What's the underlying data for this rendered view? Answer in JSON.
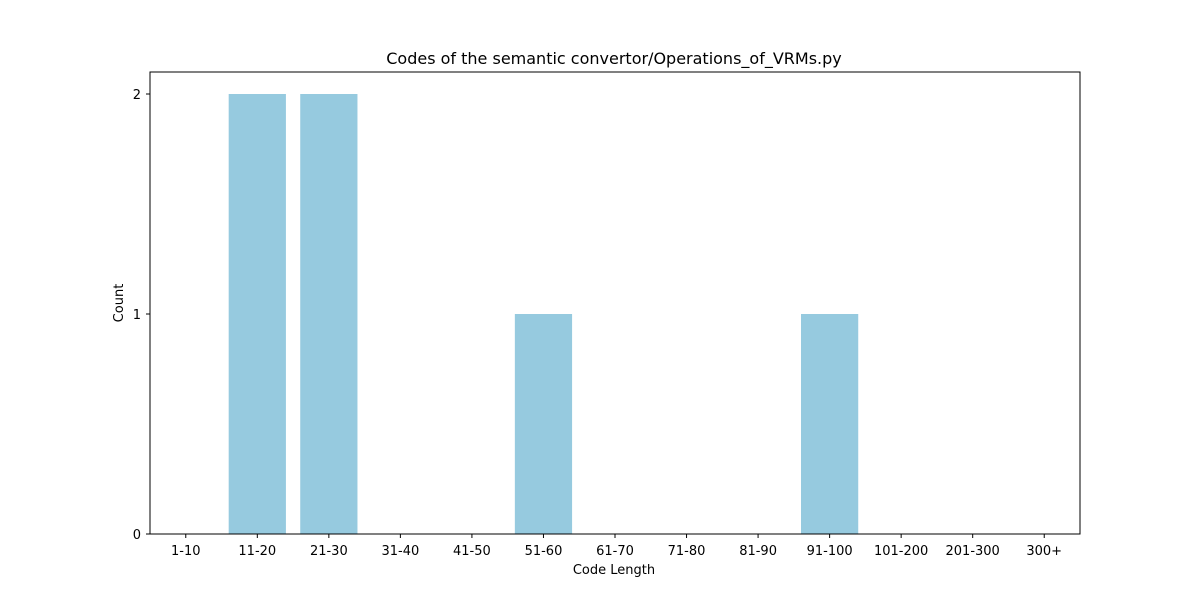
{
  "chart_data": {
    "type": "bar",
    "title": "Codes of the semantic convertor/Operations_of_VRMs.py",
    "xlabel": "Code Length",
    "ylabel": "Count",
    "categories": [
      "1-10",
      "11-20",
      "21-30",
      "31-40",
      "41-50",
      "51-60",
      "61-70",
      "71-80",
      "81-90",
      "91-100",
      "101-200",
      "201-300",
      "300+"
    ],
    "values": [
      0,
      2,
      2,
      0,
      0,
      1,
      0,
      0,
      0,
      1,
      0,
      0,
      0
    ],
    "ylim": [
      0,
      2.1
    ],
    "yticks": [
      0,
      1,
      2
    ],
    "grid": false,
    "legend": "none",
    "bar_color": "#96cadf"
  }
}
